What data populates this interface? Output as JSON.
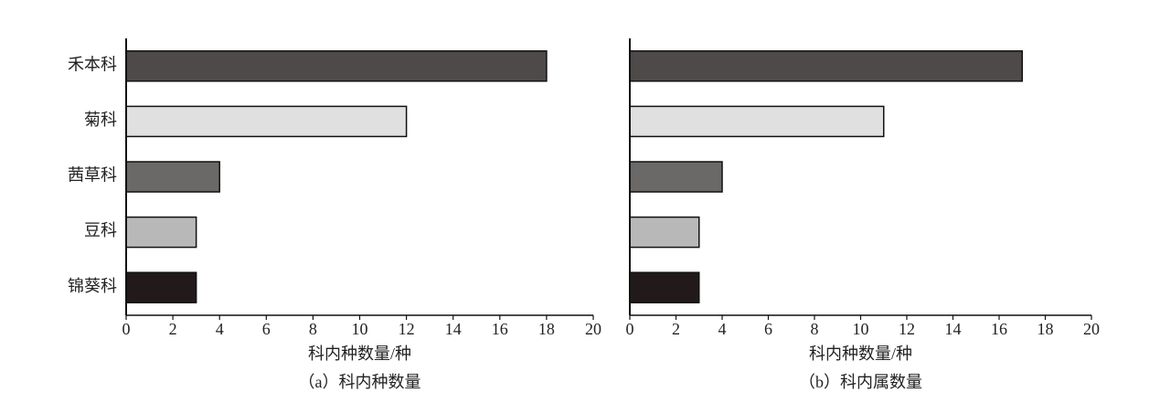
{
  "chart_data": [
    {
      "type": "barh",
      "categories": [
        "禾本科",
        "菊科",
        "茜草科",
        "豆科",
        "锦葵科"
      ],
      "values": [
        18,
        12,
        4,
        3,
        3
      ],
      "colors": [
        "#4f4a4a",
        "#e0e0e0",
        "#6b6868",
        "#b8b8b8",
        "#221a1a"
      ],
      "xlabel": "科内种数量/种",
      "subtitle": "（a）科内种数量",
      "xlim": [
        0,
        20
      ],
      "xticks": [
        0,
        2,
        4,
        6,
        8,
        10,
        12,
        14,
        16,
        18,
        20
      ]
    },
    {
      "type": "barh",
      "categories": [
        null,
        null,
        null,
        null,
        null
      ],
      "values": [
        17,
        11,
        4,
        3,
        3
      ],
      "colors": [
        "#4f4a4a",
        "#e0e0e0",
        "#6b6868",
        "#b8b8b8",
        "#221a1a"
      ],
      "xlabel": "科内种数量/种",
      "subtitle": "（b）科内属数量",
      "xlim": [
        0,
        20
      ],
      "xticks": [
        0,
        2,
        4,
        6,
        8,
        10,
        12,
        14,
        16,
        18,
        20
      ]
    }
  ]
}
